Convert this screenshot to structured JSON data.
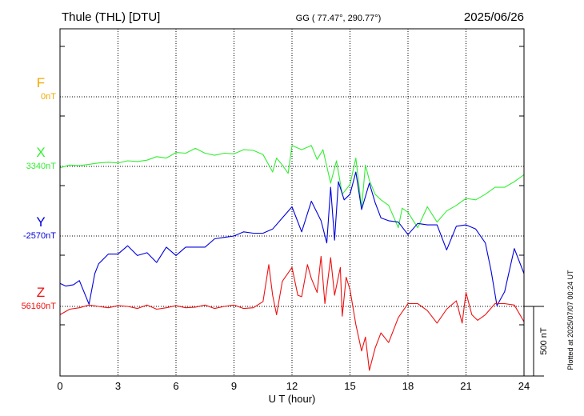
{
  "header": {
    "station": "Thule (THL)  [DTU]",
    "coords": "GG ( 77.47°, 290.77°)",
    "date": "2025/06/26"
  },
  "plotted_note": "Plotted at 2025/07/07 00:24 UT",
  "colors": {
    "F": "#f0a800",
    "X": "#33ee33",
    "Y": "#0000dd",
    "Z": "#ee1111",
    "grid": "#000000"
  },
  "chart_data": {
    "type": "line",
    "title": "Thule (THL)  [DTU]",
    "xlabel": "U T (hour)",
    "x_ticks": [
      0,
      3,
      6,
      9,
      12,
      15,
      18,
      21,
      24
    ],
    "xlim": [
      0,
      24
    ],
    "grid": true,
    "scale_bar": {
      "label": "500 nT",
      "value_nT": 500
    },
    "series": [
      {
        "name": "F",
        "baseline_label": "0nT",
        "points": []
      },
      {
        "name": "X",
        "baseline_label": "3340nT",
        "points": [
          [
            0,
            -10
          ],
          [
            0.5,
            10
          ],
          [
            1,
            5
          ],
          [
            1.5,
            15
          ],
          [
            2,
            25
          ],
          [
            2.5,
            30
          ],
          [
            3,
            25
          ],
          [
            3.5,
            40
          ],
          [
            4,
            35
          ],
          [
            4.5,
            45
          ],
          [
            5,
            70
          ],
          [
            5.5,
            60
          ],
          [
            6,
            100
          ],
          [
            6.5,
            95
          ],
          [
            7,
            130
          ],
          [
            7.5,
            95
          ],
          [
            8,
            80
          ],
          [
            8.5,
            95
          ],
          [
            9,
            90
          ],
          [
            9.5,
            120
          ],
          [
            10,
            115
          ],
          [
            10.5,
            85
          ],
          [
            11,
            -40
          ],
          [
            11.2,
            60
          ],
          [
            11.5,
            10
          ],
          [
            11.8,
            -50
          ],
          [
            12,
            150
          ],
          [
            12.5,
            120
          ],
          [
            13,
            150
          ],
          [
            13.3,
            50
          ],
          [
            13.6,
            120
          ],
          [
            14,
            -120
          ],
          [
            14.3,
            40
          ],
          [
            14.6,
            -200
          ],
          [
            15,
            -130
          ],
          [
            15.3,
            60
          ],
          [
            15.6,
            -300
          ],
          [
            15.8,
            10
          ],
          [
            16,
            -100
          ],
          [
            16.3,
            -200
          ],
          [
            16.6,
            -240
          ],
          [
            17,
            -280
          ],
          [
            17.5,
            -440
          ],
          [
            17.7,
            -300
          ],
          [
            18,
            -330
          ],
          [
            18.5,
            -440
          ],
          [
            19,
            -290
          ],
          [
            19.5,
            -400
          ],
          [
            20,
            -320
          ],
          [
            20.5,
            -280
          ],
          [
            21,
            -230
          ],
          [
            21.5,
            -240
          ],
          [
            22,
            -200
          ],
          [
            22.5,
            -150
          ],
          [
            23,
            -150
          ],
          [
            23.5,
            -110
          ],
          [
            24,
            -60
          ]
        ]
      },
      {
        "name": "Y",
        "baseline_label": "-2570nT",
        "points": [
          [
            0,
            -340
          ],
          [
            0.3,
            -360
          ],
          [
            0.7,
            -350
          ],
          [
            1,
            -320
          ],
          [
            1.5,
            -490
          ],
          [
            1.8,
            -270
          ],
          [
            2,
            -200
          ],
          [
            2.5,
            -130
          ],
          [
            3,
            -130
          ],
          [
            3.5,
            -70
          ],
          [
            4,
            -140
          ],
          [
            4.5,
            -120
          ],
          [
            5,
            -190
          ],
          [
            5.5,
            -80
          ],
          [
            6,
            -140
          ],
          [
            6.5,
            -80
          ],
          [
            7,
            -80
          ],
          [
            7.5,
            -80
          ],
          [
            8,
            -20
          ],
          [
            8.5,
            -10
          ],
          [
            9,
            0
          ],
          [
            9.5,
            30
          ],
          [
            10,
            20
          ],
          [
            10.5,
            20
          ],
          [
            11,
            50
          ],
          [
            11.5,
            130
          ],
          [
            12,
            210
          ],
          [
            12.5,
            30
          ],
          [
            13,
            250
          ],
          [
            13.5,
            110
          ],
          [
            13.8,
            -50
          ],
          [
            14,
            350
          ],
          [
            14.2,
            -30
          ],
          [
            14.4,
            390
          ],
          [
            14.7,
            260
          ],
          [
            15,
            300
          ],
          [
            15.3,
            460
          ],
          [
            15.6,
            190
          ],
          [
            16,
            380
          ],
          [
            16.3,
            240
          ],
          [
            16.6,
            130
          ],
          [
            17,
            110
          ],
          [
            17.5,
            100
          ],
          [
            18,
            10
          ],
          [
            18.5,
            90
          ],
          [
            19,
            80
          ],
          [
            19.5,
            80
          ],
          [
            20,
            -100
          ],
          [
            20.5,
            70
          ],
          [
            21,
            80
          ],
          [
            21.5,
            50
          ],
          [
            22,
            -50
          ],
          [
            22.3,
            -250
          ],
          [
            22.6,
            -500
          ],
          [
            23,
            -400
          ],
          [
            23.5,
            -90
          ],
          [
            24,
            -270
          ]
        ]
      },
      {
        "name": "Z",
        "baseline_label": "56160nT",
        "points": [
          [
            0,
            -60
          ],
          [
            0.5,
            -20
          ],
          [
            1,
            -10
          ],
          [
            1.5,
            10
          ],
          [
            2,
            0
          ],
          [
            2.5,
            -10
          ],
          [
            3,
            5
          ],
          [
            3.5,
            0
          ],
          [
            4,
            -15
          ],
          [
            4.5,
            10
          ],
          [
            5,
            -20
          ],
          [
            5.5,
            -10
          ],
          [
            6,
            5
          ],
          [
            6.5,
            -10
          ],
          [
            7,
            -5
          ],
          [
            7.5,
            10
          ],
          [
            8,
            -15
          ],
          [
            8.5,
            0
          ],
          [
            9,
            10
          ],
          [
            9.5,
            -15
          ],
          [
            10,
            -10
          ],
          [
            10.5,
            35
          ],
          [
            10.8,
            300
          ],
          [
            11,
            80
          ],
          [
            11.2,
            -60
          ],
          [
            11.5,
            180
          ],
          [
            12,
            280
          ],
          [
            12.3,
            80
          ],
          [
            12.5,
            70
          ],
          [
            12.8,
            300
          ],
          [
            13,
            200
          ],
          [
            13.3,
            100
          ],
          [
            13.5,
            360
          ],
          [
            13.7,
            20
          ],
          [
            14,
            350
          ],
          [
            14.2,
            80
          ],
          [
            14.5,
            280
          ],
          [
            14.6,
            -70
          ],
          [
            14.8,
            210
          ],
          [
            15,
            120
          ],
          [
            15.3,
            -130
          ],
          [
            15.6,
            -320
          ],
          [
            15.8,
            -220
          ],
          [
            16,
            -460
          ],
          [
            16.3,
            -300
          ],
          [
            16.6,
            -190
          ],
          [
            17,
            -260
          ],
          [
            17.5,
            -80
          ],
          [
            18,
            20
          ],
          [
            18.5,
            20
          ],
          [
            19,
            -30
          ],
          [
            19.5,
            -120
          ],
          [
            20,
            -20
          ],
          [
            20.5,
            40
          ],
          [
            20.8,
            -120
          ],
          [
            21,
            100
          ],
          [
            21.3,
            -60
          ],
          [
            21.6,
            -100
          ],
          [
            22,
            -60
          ],
          [
            22.5,
            20
          ],
          [
            23,
            20
          ],
          [
            23.5,
            10
          ],
          [
            24,
            -110
          ]
        ]
      }
    ]
  }
}
